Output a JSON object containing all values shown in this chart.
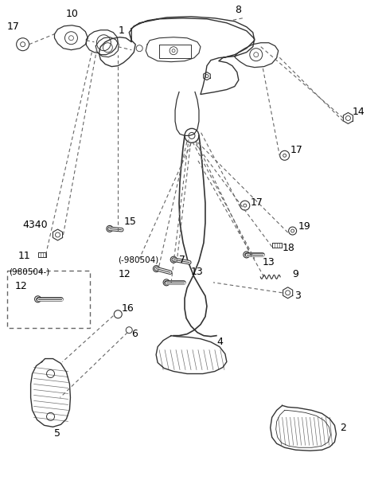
{
  "bg_color": "#ffffff",
  "line_color": "#333333",
  "dash_color": "#666666",
  "text_color": "#000000",
  "fig_width": 4.8,
  "fig_height": 6.03,
  "dpi": 100
}
